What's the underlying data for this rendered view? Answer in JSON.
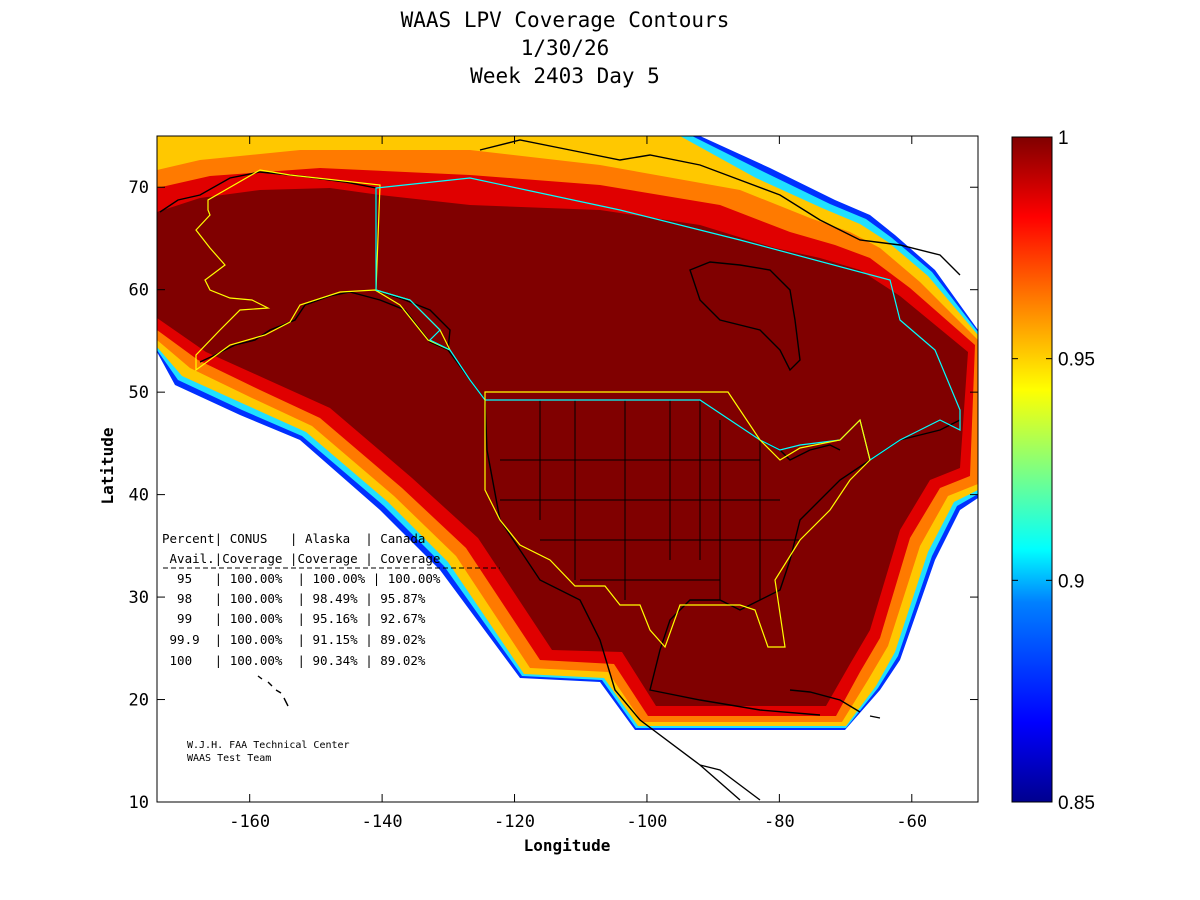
{
  "title": {
    "line1": "WAAS LPV Coverage Contours",
    "line2": "1/30/26",
    "line3": "Week 2403 Day 5"
  },
  "axes": {
    "xlabel": "Longitude",
    "ylabel": "Latitude",
    "xlim": [
      -174,
      -50
    ],
    "ylim": [
      10,
      75
    ],
    "xticks": [
      "-160",
      "-140",
      "-120",
      "-100",
      "-80",
      "-60"
    ],
    "xtick_values": [
      -160,
      -140,
      -120,
      -100,
      -80,
      -60
    ],
    "yticks": [
      "10",
      "20",
      "30",
      "40",
      "50",
      "60",
      "70"
    ],
    "ytick_values": [
      10,
      20,
      30,
      40,
      50,
      60,
      70
    ]
  },
  "colorbar": {
    "range": [
      0.85,
      1.0
    ],
    "ticks": [
      "1",
      "0.95",
      "0.9",
      "0.85"
    ],
    "tick_values": [
      1.0,
      0.95,
      0.9,
      0.85
    ]
  },
  "coverage_table": {
    "header1": "Percent| CONUS   | Alaska  | Canada",
    "header2": " Avail.|Coverage |Coverage | Coverage",
    "rows": [
      "  95   | 100.00%  | 100.00% | 100.00%",
      "  98   | 100.00%  | 98.49% | 95.87%",
      "  99   | 100.00%  | 95.16% | 92.67%",
      " 99.9  | 100.00%  | 91.15% | 89.02%",
      " 100   | 100.00%  | 90.34% | 89.02%"
    ]
  },
  "credit": {
    "line1": "W.J.H. FAA Technical Center",
    "line2": "WAAS Test Team"
  },
  "colors": {
    "dark_red": "#800000",
    "red": "#d40000",
    "orange": "#ff8000",
    "yellow": "#ffd000",
    "cyan": "#00c8ff",
    "blue": "#0000c0",
    "alaska_outline": "#ffff00",
    "canada_outline": "#00ffff"
  }
}
